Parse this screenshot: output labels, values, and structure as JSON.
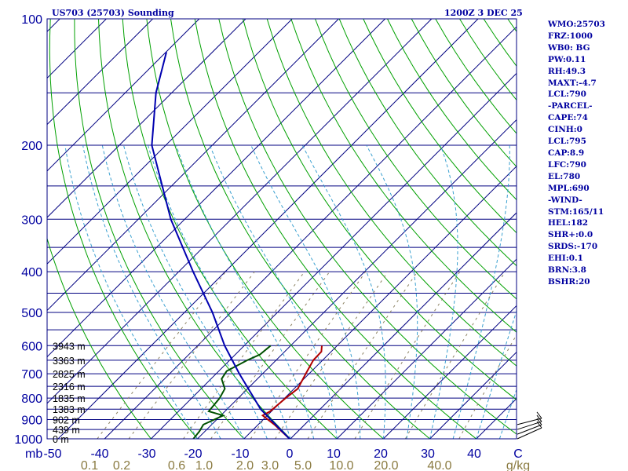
{
  "header": {
    "title": "US703 (25703) Sounding",
    "valid_time": "1200Z  3 DEC 25"
  },
  "indices": [
    "WMO:25703",
    "FRZ:1000",
    "WB0: BG",
    "PW:0.11",
    "RH:49.3",
    "MAXT:-4.7",
    "LCL:790",
    "-PARCEL-",
    "CAPE:74",
    "CINH:0",
    "LCL:795",
    "CAP:8.9",
    "LFC:790",
    "EL:780",
    "MPL:690",
    "-WIND-",
    "STM:165/11",
    "HEL:182",
    "SHR+:0.0",
    "SRDS:-170",
    "EHI:0.1",
    "BRN:3.8",
    "BSHR:20"
  ],
  "chart_data": {
    "type": "line",
    "title": "US703 (25703) Sounding",
    "subtitle": "1200Z  3 DEC 25",
    "xlabel": "",
    "ylabel": "",
    "x_scale": "skew-T temperature (°C), isotherms skewed 45°",
    "y_scale": "log pressure (mb), 1000 at bottom, 100 at top",
    "xlim": [
      -50,
      50
    ],
    "ylim": [
      1000,
      100
    ],
    "pressure_tick_labels": [
      "100",
      "200",
      "300",
      "400",
      "500",
      "600",
      "700",
      "800",
      "900",
      "1000"
    ],
    "temperature_tick_labels": [
      "-50",
      "-40",
      "-30",
      "-20",
      "-10",
      "0",
      "10",
      "20",
      "30",
      "40",
      "C"
    ],
    "mixing_ratio_labels": [
      "0.1",
      "0.2",
      "0.6",
      "1.0",
      "2.0",
      "3.0",
      "5.0",
      "10.0",
      "20.0",
      "40.0",
      "g/kg"
    ],
    "axis_unit_left": "mb",
    "height_labels": [
      {
        "p": 1000,
        "label": "0 m"
      },
      {
        "p": 950,
        "label": "439 m"
      },
      {
        "p": 900,
        "label": "902 m"
      },
      {
        "p": 850,
        "label": "1383 m"
      },
      {
        "p": 800,
        "label": "1835 m"
      },
      {
        "p": 750,
        "label": "2316 m"
      },
      {
        "p": 700,
        "label": "2825 m"
      },
      {
        "p": 650,
        "label": "3363 m"
      },
      {
        "p": 600,
        "label": "3943 m"
      }
    ],
    "series": [
      {
        "color": "#b00000",
        "points": [
          {
            "p": 1000,
            "t": -0.2
          },
          {
            "p": 960,
            "t": -3.5
          },
          {
            "p": 925,
            "t": -6.5
          },
          {
            "p": 900,
            "t": -9.0
          },
          {
            "p": 880,
            "t": -11.0
          },
          {
            "p": 860,
            "t": -10.3
          },
          {
            "p": 800,
            "t": -9.8
          },
          {
            "p": 760,
            "t": -9.2
          },
          {
            "p": 700,
            "t": -10.7
          },
          {
            "p": 650,
            "t": -12.0
          },
          {
            "p": 620,
            "t": -12.1
          },
          {
            "p": 600,
            "t": -13.3
          }
        ]
      },
      {
        "color": "#005000",
        "points": [
          {
            "p": 1000,
            "t": -20.9
          },
          {
            "p": 960,
            "t": -21.2
          },
          {
            "p": 925,
            "t": -21.8
          },
          {
            "p": 880,
            "t": -19.5
          },
          {
            "p": 860,
            "t": -23.5
          },
          {
            "p": 800,
            "t": -24.0
          },
          {
            "p": 760,
            "t": -24.9
          },
          {
            "p": 720,
            "t": -27.7
          },
          {
            "p": 690,
            "t": -28.3
          },
          {
            "p": 650,
            "t": -26.2
          },
          {
            "p": 630,
            "t": -24.7
          },
          {
            "p": 600,
            "t": -24.3
          }
        ]
      },
      {
        "color": "#0000b0",
        "points": [
          {
            "p": 1000,
            "t": -0.2
          },
          {
            "p": 850,
            "t": -12.8
          },
          {
            "p": 700,
            "t": -25.0
          },
          {
            "p": 600,
            "t": -34.2
          },
          {
            "p": 500,
            "t": -44.0
          },
          {
            "p": 400,
            "t": -56.9
          },
          {
            "p": 300,
            "t": -73.0
          },
          {
            "p": 200,
            "t": -93.0
          },
          {
            "p": 150,
            "t": -103.4
          },
          {
            "p": 120,
            "t": -109.9
          }
        ]
      }
    ],
    "grid": true
  }
}
